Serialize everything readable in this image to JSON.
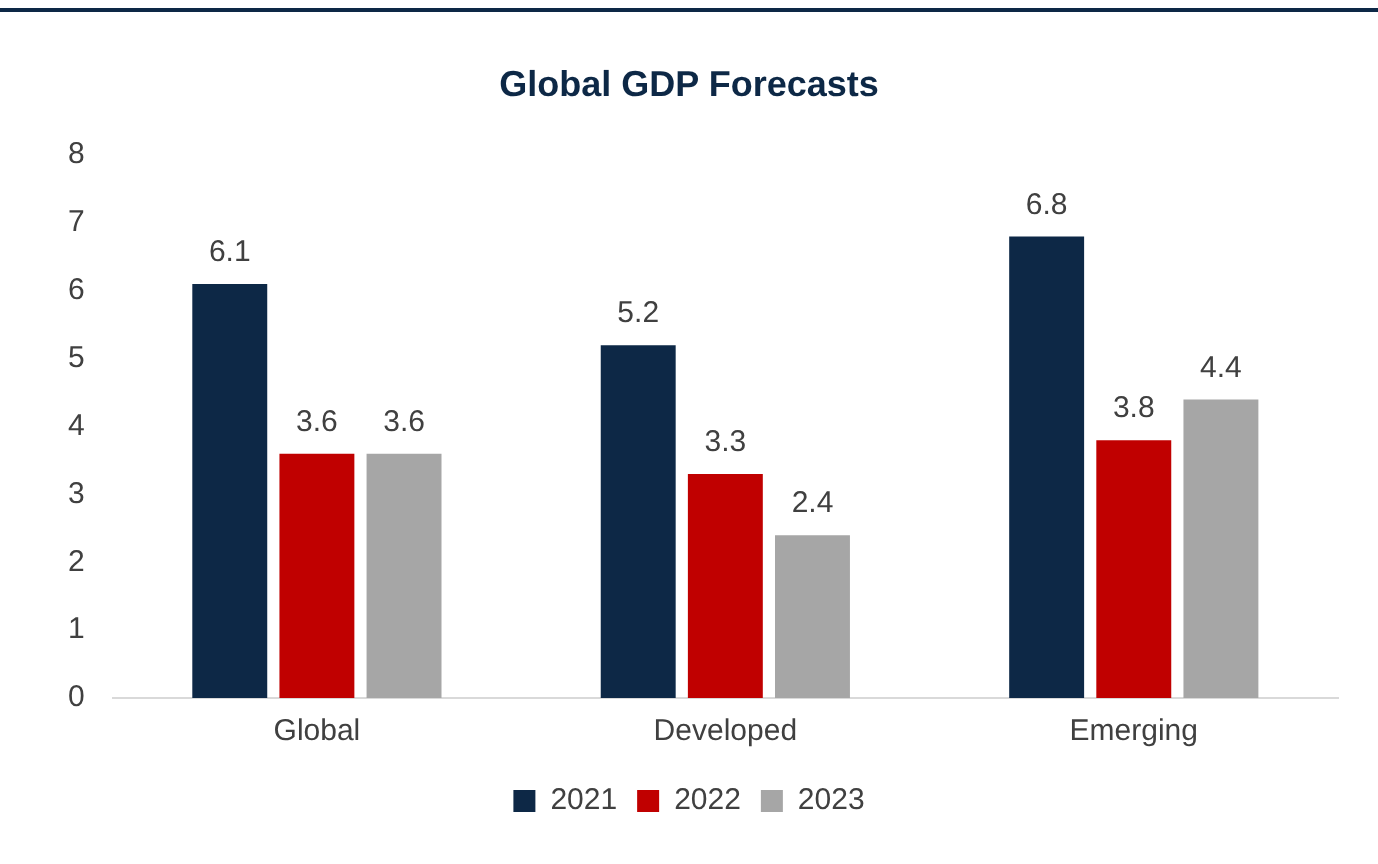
{
  "chart_data": {
    "type": "bar",
    "title": "Global GDP Forecasts",
    "categories": [
      "Global",
      "Developed",
      "Emerging"
    ],
    "series": [
      {
        "name": "2021",
        "color": "#0d2846",
        "values": [
          6.1,
          5.2,
          6.8
        ]
      },
      {
        "name": "2022",
        "color": "#c00000",
        "values": [
          3.6,
          3.3,
          3.8
        ]
      },
      {
        "name": "2023",
        "color": "#a6a6a6",
        "values": [
          3.6,
          2.4,
          4.4
        ]
      }
    ],
    "ylim": [
      0,
      8
    ],
    "yticks": [
      0,
      1,
      2,
      3,
      4,
      5,
      6,
      7,
      8
    ],
    "grid": false,
    "legend": "bottom",
    "data_labels": true
  }
}
